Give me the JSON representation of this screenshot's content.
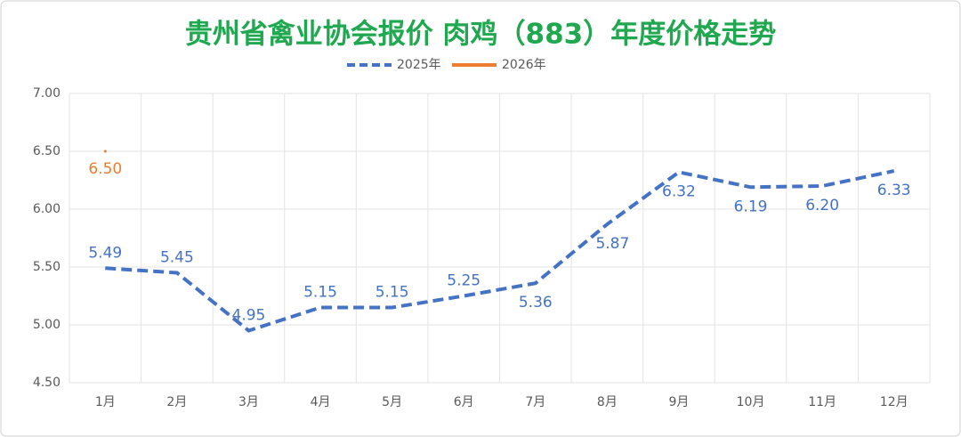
{
  "chart_data": {
    "type": "line",
    "title": "贵州省禽业协会报价 肉鸡（883）年度价格走势",
    "categories": [
      "1月",
      "2月",
      "3月",
      "4月",
      "5月",
      "6月",
      "7月",
      "8月",
      "9月",
      "10月",
      "11月",
      "12月"
    ],
    "series": [
      {
        "name": "2025年",
        "color": "#4472c4",
        "dashed": true,
        "values": [
          5.49,
          5.45,
          4.95,
          5.15,
          5.15,
          5.25,
          5.36,
          5.87,
          6.32,
          6.19,
          6.2,
          6.33
        ],
        "value_labels": [
          "5.49",
          "5.45",
          "4.95",
          "5.15",
          "5.15",
          "5.25",
          "5.36",
          "5.87",
          "6.32",
          "6.19",
          "6.20",
          "6.33"
        ]
      },
      {
        "name": "2026年",
        "color": "#ed7d31",
        "dashed": false,
        "values": [
          6.5,
          null,
          null,
          null,
          null,
          null,
          null,
          null,
          null,
          null,
          null,
          null
        ],
        "value_labels": [
          "6.50",
          null,
          null,
          null,
          null,
          null,
          null,
          null,
          null,
          null,
          null,
          null
        ]
      }
    ],
    "ylim": [
      4.5,
      7
    ],
    "yticks": [
      {
        "value": 4.5,
        "label": "4.50"
      },
      {
        "value": 5,
        "label": "5.00"
      },
      {
        "value": 5.5,
        "label": "5.50"
      },
      {
        "value": 6,
        "label": "6.00"
      },
      {
        "value": 6.5,
        "label": "6.50"
      },
      {
        "value": 7,
        "label": "7.00"
      }
    ],
    "grid": true,
    "legend": "top"
  }
}
